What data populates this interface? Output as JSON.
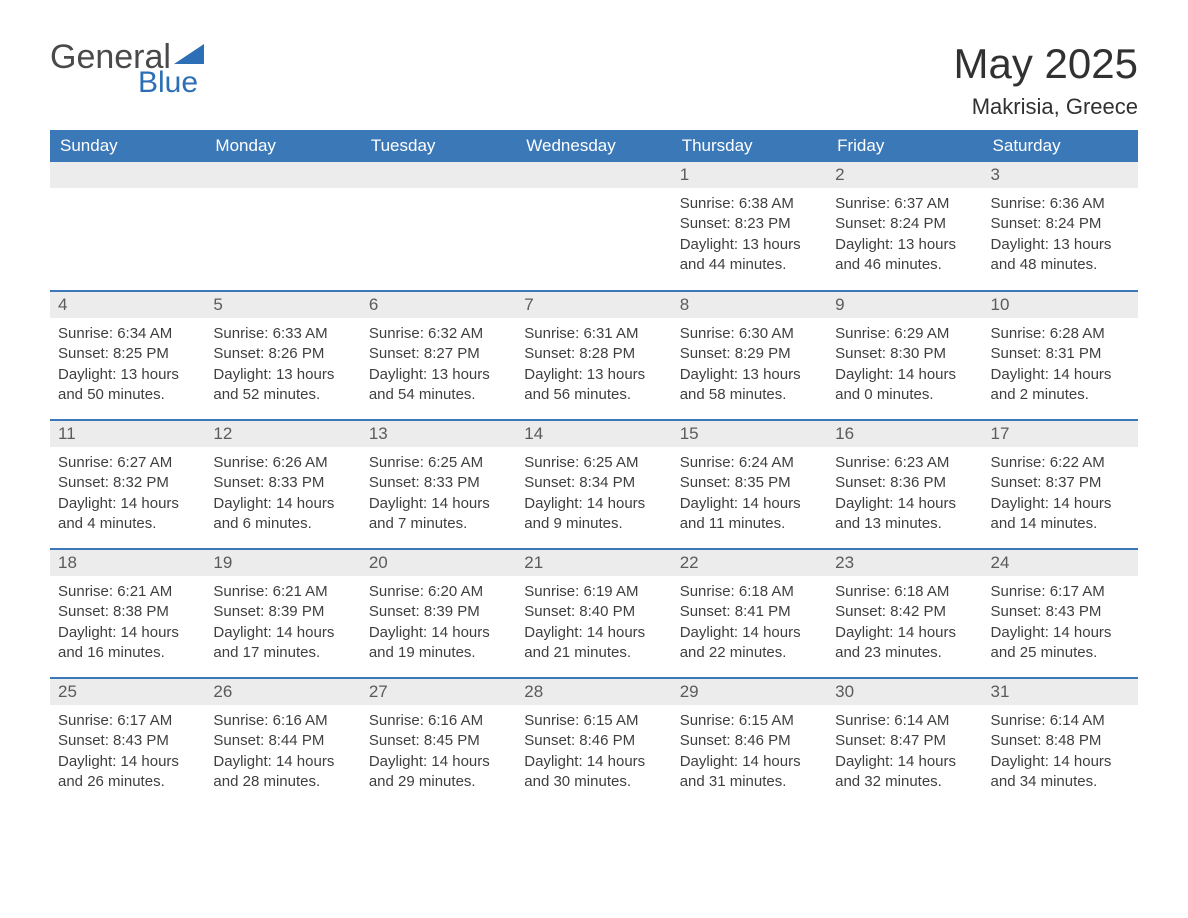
{
  "logo": {
    "text1": "General",
    "text2": "Blue",
    "triangle_color": "#2d6fb6"
  },
  "title": "May 2025",
  "location": "Makrisia, Greece",
  "colors": {
    "header_bg": "#3b78b8",
    "header_text": "#ffffff",
    "daynum_bg": "#ececec",
    "border": "#3b78b8"
  },
  "day_names": [
    "Sunday",
    "Monday",
    "Tuesday",
    "Wednesday",
    "Thursday",
    "Friday",
    "Saturday"
  ],
  "weeks": [
    [
      {
        "num": "",
        "lines": []
      },
      {
        "num": "",
        "lines": []
      },
      {
        "num": "",
        "lines": []
      },
      {
        "num": "",
        "lines": []
      },
      {
        "num": "1",
        "lines": [
          "Sunrise: 6:38 AM",
          "Sunset: 8:23 PM",
          "Daylight: 13 hours",
          "and 44 minutes."
        ]
      },
      {
        "num": "2",
        "lines": [
          "Sunrise: 6:37 AM",
          "Sunset: 8:24 PM",
          "Daylight: 13 hours",
          "and 46 minutes."
        ]
      },
      {
        "num": "3",
        "lines": [
          "Sunrise: 6:36 AM",
          "Sunset: 8:24 PM",
          "Daylight: 13 hours",
          "and 48 minutes."
        ]
      }
    ],
    [
      {
        "num": "4",
        "lines": [
          "Sunrise: 6:34 AM",
          "Sunset: 8:25 PM",
          "Daylight: 13 hours",
          "and 50 minutes."
        ]
      },
      {
        "num": "5",
        "lines": [
          "Sunrise: 6:33 AM",
          "Sunset: 8:26 PM",
          "Daylight: 13 hours",
          "and 52 minutes."
        ]
      },
      {
        "num": "6",
        "lines": [
          "Sunrise: 6:32 AM",
          "Sunset: 8:27 PM",
          "Daylight: 13 hours",
          "and 54 minutes."
        ]
      },
      {
        "num": "7",
        "lines": [
          "Sunrise: 6:31 AM",
          "Sunset: 8:28 PM",
          "Daylight: 13 hours",
          "and 56 minutes."
        ]
      },
      {
        "num": "8",
        "lines": [
          "Sunrise: 6:30 AM",
          "Sunset: 8:29 PM",
          "Daylight: 13 hours",
          "and 58 minutes."
        ]
      },
      {
        "num": "9",
        "lines": [
          "Sunrise: 6:29 AM",
          "Sunset: 8:30 PM",
          "Daylight: 14 hours",
          "and 0 minutes."
        ]
      },
      {
        "num": "10",
        "lines": [
          "Sunrise: 6:28 AM",
          "Sunset: 8:31 PM",
          "Daylight: 14 hours",
          "and 2 minutes."
        ]
      }
    ],
    [
      {
        "num": "11",
        "lines": [
          "Sunrise: 6:27 AM",
          "Sunset: 8:32 PM",
          "Daylight: 14 hours",
          "and 4 minutes."
        ]
      },
      {
        "num": "12",
        "lines": [
          "Sunrise: 6:26 AM",
          "Sunset: 8:33 PM",
          "Daylight: 14 hours",
          "and 6 minutes."
        ]
      },
      {
        "num": "13",
        "lines": [
          "Sunrise: 6:25 AM",
          "Sunset: 8:33 PM",
          "Daylight: 14 hours",
          "and 7 minutes."
        ]
      },
      {
        "num": "14",
        "lines": [
          "Sunrise: 6:25 AM",
          "Sunset: 8:34 PM",
          "Daylight: 14 hours",
          "and 9 minutes."
        ]
      },
      {
        "num": "15",
        "lines": [
          "Sunrise: 6:24 AM",
          "Sunset: 8:35 PM",
          "Daylight: 14 hours",
          "and 11 minutes."
        ]
      },
      {
        "num": "16",
        "lines": [
          "Sunrise: 6:23 AM",
          "Sunset: 8:36 PM",
          "Daylight: 14 hours",
          "and 13 minutes."
        ]
      },
      {
        "num": "17",
        "lines": [
          "Sunrise: 6:22 AM",
          "Sunset: 8:37 PM",
          "Daylight: 14 hours",
          "and 14 minutes."
        ]
      }
    ],
    [
      {
        "num": "18",
        "lines": [
          "Sunrise: 6:21 AM",
          "Sunset: 8:38 PM",
          "Daylight: 14 hours",
          "and 16 minutes."
        ]
      },
      {
        "num": "19",
        "lines": [
          "Sunrise: 6:21 AM",
          "Sunset: 8:39 PM",
          "Daylight: 14 hours",
          "and 17 minutes."
        ]
      },
      {
        "num": "20",
        "lines": [
          "Sunrise: 6:20 AM",
          "Sunset: 8:39 PM",
          "Daylight: 14 hours",
          "and 19 minutes."
        ]
      },
      {
        "num": "21",
        "lines": [
          "Sunrise: 6:19 AM",
          "Sunset: 8:40 PM",
          "Daylight: 14 hours",
          "and 21 minutes."
        ]
      },
      {
        "num": "22",
        "lines": [
          "Sunrise: 6:18 AM",
          "Sunset: 8:41 PM",
          "Daylight: 14 hours",
          "and 22 minutes."
        ]
      },
      {
        "num": "23",
        "lines": [
          "Sunrise: 6:18 AM",
          "Sunset: 8:42 PM",
          "Daylight: 14 hours",
          "and 23 minutes."
        ]
      },
      {
        "num": "24",
        "lines": [
          "Sunrise: 6:17 AM",
          "Sunset: 8:43 PM",
          "Daylight: 14 hours",
          "and 25 minutes."
        ]
      }
    ],
    [
      {
        "num": "25",
        "lines": [
          "Sunrise: 6:17 AM",
          "Sunset: 8:43 PM",
          "Daylight: 14 hours",
          "and 26 minutes."
        ]
      },
      {
        "num": "26",
        "lines": [
          "Sunrise: 6:16 AM",
          "Sunset: 8:44 PM",
          "Daylight: 14 hours",
          "and 28 minutes."
        ]
      },
      {
        "num": "27",
        "lines": [
          "Sunrise: 6:16 AM",
          "Sunset: 8:45 PM",
          "Daylight: 14 hours",
          "and 29 minutes."
        ]
      },
      {
        "num": "28",
        "lines": [
          "Sunrise: 6:15 AM",
          "Sunset: 8:46 PM",
          "Daylight: 14 hours",
          "and 30 minutes."
        ]
      },
      {
        "num": "29",
        "lines": [
          "Sunrise: 6:15 AM",
          "Sunset: 8:46 PM",
          "Daylight: 14 hours",
          "and 31 minutes."
        ]
      },
      {
        "num": "30",
        "lines": [
          "Sunrise: 6:14 AM",
          "Sunset: 8:47 PM",
          "Daylight: 14 hours",
          "and 32 minutes."
        ]
      },
      {
        "num": "31",
        "lines": [
          "Sunrise: 6:14 AM",
          "Sunset: 8:48 PM",
          "Daylight: 14 hours",
          "and 34 minutes."
        ]
      }
    ]
  ]
}
